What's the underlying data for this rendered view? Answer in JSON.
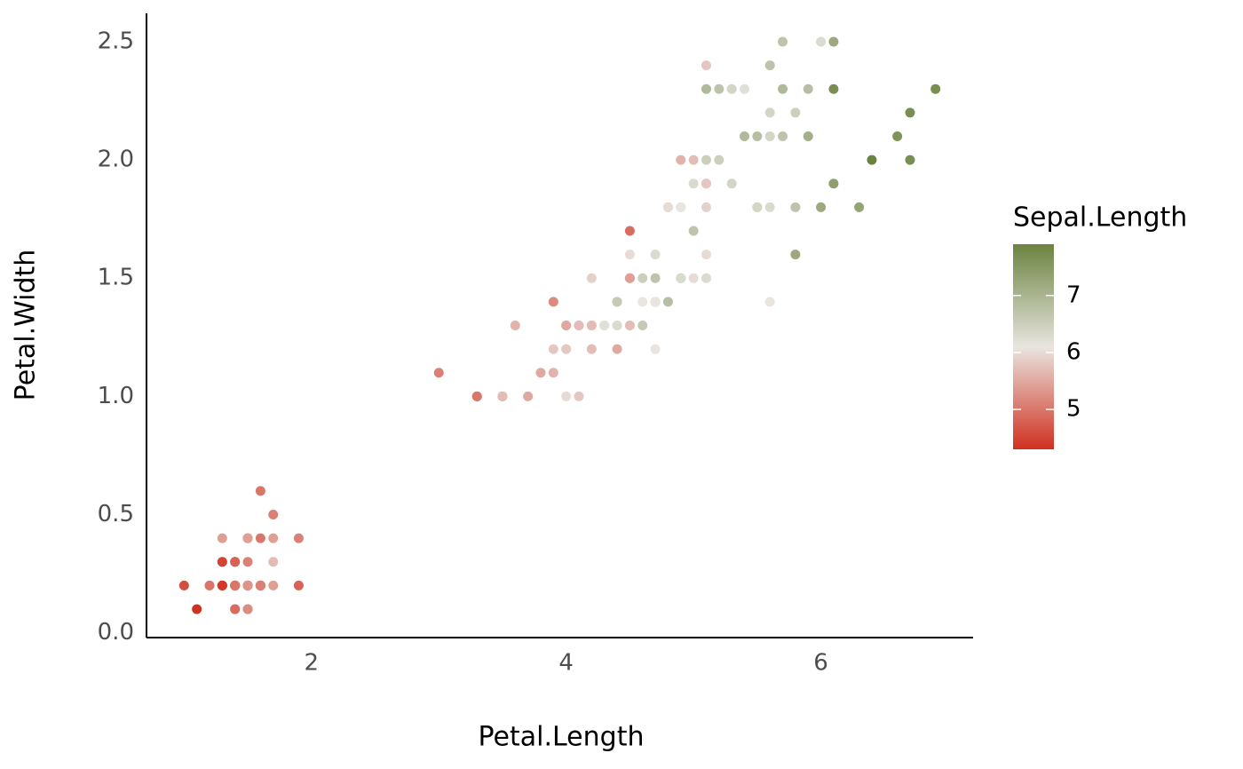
{
  "chart_data": {
    "type": "scatter",
    "x_label": "Petal.Length",
    "y_label": "Petal.Width",
    "x": [
      1.4,
      1.4,
      1.3,
      1.5,
      1.4,
      1.7,
      1.4,
      1.5,
      1.4,
      1.5,
      1.5,
      1.6,
      1.4,
      1.1,
      1.2,
      1.5,
      1.3,
      1.4,
      1.7,
      1.5,
      1.7,
      1.5,
      1.0,
      1.7,
      1.9,
      1.6,
      1.6,
      1.5,
      1.4,
      1.6,
      1.6,
      1.5,
      1.5,
      1.4,
      1.5,
      1.2,
      1.3,
      1.4,
      1.3,
      1.5,
      1.3,
      1.3,
      1.3,
      1.6,
      1.9,
      1.4,
      1.6,
      1.4,
      1.5,
      1.4,
      4.7,
      4.5,
      4.9,
      4.0,
      4.6,
      4.5,
      4.7,
      3.3,
      4.6,
      3.9,
      3.5,
      4.2,
      4.0,
      4.7,
      3.6,
      4.4,
      4.5,
      4.1,
      4.5,
      3.9,
      4.8,
      4.0,
      4.9,
      4.7,
      4.3,
      4.4,
      4.8,
      5.0,
      4.5,
      3.5,
      3.8,
      3.7,
      3.9,
      5.1,
      4.5,
      4.5,
      4.7,
      4.4,
      4.1,
      4.0,
      4.4,
      4.6,
      4.0,
      3.3,
      4.2,
      4.2,
      4.2,
      4.3,
      3.0,
      4.1,
      6.0,
      5.1,
      5.9,
      5.6,
      5.8,
      6.6,
      4.5,
      6.3,
      5.8,
      6.1,
      5.1,
      5.3,
      5.5,
      5.0,
      5.1,
      5.3,
      5.5,
      6.7,
      6.9,
      5.0,
      5.7,
      4.9,
      6.7,
      4.9,
      5.7,
      6.0,
      4.8,
      4.9,
      5.6,
      5.8,
      6.1,
      6.4,
      5.6,
      5.1,
      5.6,
      6.1,
      5.6,
      5.5,
      4.8,
      5.4,
      5.6,
      5.1,
      5.1,
      5.9,
      5.7,
      5.2,
      5.0,
      5.2,
      5.4,
      5.1
    ],
    "y": [
      0.2,
      0.2,
      0.2,
      0.2,
      0.2,
      0.4,
      0.3,
      0.2,
      0.2,
      0.1,
      0.2,
      0.2,
      0.1,
      0.1,
      0.2,
      0.4,
      0.4,
      0.3,
      0.3,
      0.3,
      0.2,
      0.4,
      0.2,
      0.5,
      0.2,
      0.2,
      0.4,
      0.2,
      0.2,
      0.2,
      0.2,
      0.4,
      0.1,
      0.2,
      0.2,
      0.2,
      0.2,
      0.1,
      0.2,
      0.2,
      0.3,
      0.3,
      0.2,
      0.6,
      0.4,
      0.3,
      0.2,
      0.2,
      0.2,
      0.2,
      1.4,
      1.5,
      1.5,
      1.3,
      1.5,
      1.3,
      1.6,
      1.0,
      1.3,
      1.4,
      1.0,
      1.5,
      1.0,
      1.4,
      1.3,
      1.4,
      1.5,
      1.0,
      1.5,
      1.1,
      1.8,
      1.3,
      1.5,
      1.2,
      1.3,
      1.4,
      1.4,
      1.7,
      1.5,
      1.0,
      1.1,
      1.0,
      1.2,
      1.6,
      1.5,
      1.6,
      1.5,
      1.3,
      1.3,
      1.3,
      1.2,
      1.4,
      1.2,
      1.0,
      1.3,
      1.2,
      1.3,
      1.3,
      1.1,
      1.3,
      2.5,
      1.9,
      2.1,
      1.8,
      2.2,
      2.1,
      1.7,
      1.8,
      1.8,
      2.5,
      2.0,
      1.9,
      2.1,
      2.0,
      2.4,
      2.3,
      1.8,
      2.2,
      2.3,
      1.5,
      2.3,
      2.0,
      2.0,
      1.8,
      2.1,
      1.8,
      1.8,
      1.8,
      2.1,
      1.6,
      1.9,
      2.0,
      2.2,
      1.5,
      1.4,
      2.3,
      2.4,
      1.8,
      1.8,
      2.1,
      2.4,
      2.3,
      1.9,
      2.3,
      2.5,
      2.3,
      1.9,
      2.0,
      2.3,
      1.8
    ],
    "color_label": "Sepal.Length",
    "color_values": [
      5.1,
      4.9,
      4.7,
      4.6,
      5.0,
      5.4,
      4.6,
      5.0,
      4.4,
      4.9,
      5.4,
      4.8,
      4.8,
      4.3,
      5.8,
      5.7,
      5.4,
      5.1,
      5.7,
      5.1,
      5.4,
      5.1,
      4.6,
      5.1,
      4.8,
      5.0,
      5.0,
      5.2,
      5.2,
      4.7,
      4.8,
      5.4,
      5.2,
      5.5,
      4.9,
      5.0,
      5.5,
      4.9,
      4.4,
      5.1,
      5.0,
      4.5,
      4.4,
      5.0,
      5.1,
      4.8,
      5.1,
      4.6,
      5.3,
      5.0,
      7.0,
      6.4,
      6.9,
      5.5,
      6.5,
      5.7,
      6.3,
      4.9,
      6.6,
      5.2,
      5.0,
      5.9,
      6.0,
      6.1,
      5.6,
      6.7,
      5.6,
      5.8,
      6.2,
      5.6,
      5.9,
      6.1,
      6.3,
      6.1,
      6.4,
      6.6,
      6.8,
      6.7,
      6.0,
      5.7,
      5.5,
      5.5,
      5.8,
      6.0,
      5.4,
      6.0,
      6.7,
      6.3,
      5.6,
      5.5,
      5.5,
      6.1,
      5.8,
      5.0,
      5.6,
      5.7,
      5.7,
      6.2,
      5.1,
      5.7,
      6.3,
      5.8,
      7.1,
      6.3,
      6.5,
      7.6,
      4.9,
      7.3,
      6.7,
      7.2,
      6.5,
      6.4,
      6.8,
      5.7,
      5.8,
      6.4,
      6.5,
      7.7,
      7.7,
      6.0,
      6.9,
      5.6,
      7.7,
      6.3,
      6.7,
      7.2,
      6.2,
      6.1,
      6.4,
      7.2,
      7.4,
      7.9,
      6.4,
      6.3,
      6.1,
      7.7,
      6.3,
      6.4,
      6.0,
      6.9,
      6.7,
      6.9,
      5.8,
      6.8,
      6.7,
      6.7,
      6.3,
      6.5,
      6.2,
      5.9
    ],
    "color_lim": [
      4.3,
      7.9
    ],
    "color_ticks": [
      5,
      6,
      7
    ],
    "colors": [
      "#d0301f",
      "#e8e5e0",
      "#6b8340"
    ],
    "xlim": [
      0.705,
      7.195
    ],
    "xticks": [
      2,
      4,
      6
    ],
    "ylim": [
      -0.02,
      2.62
    ],
    "yticks": [
      {
        "value": 0,
        "label": "0.0"
      },
      0.5,
      {
        "value": 1,
        "label": "1.0"
      },
      1.5,
      {
        "value": 2,
        "label": "2.0"
      },
      2.5
    ],
    "grid": false
  }
}
